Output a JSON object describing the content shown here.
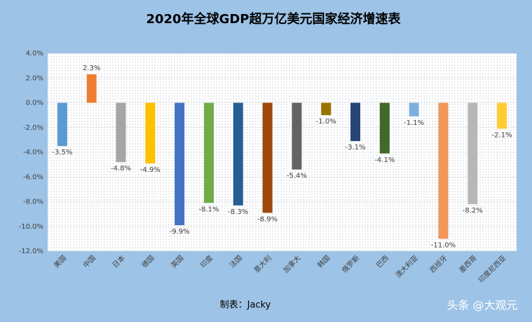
{
  "chart_data": {
    "type": "bar",
    "title": "2020年全球GDP超万亿美元国家经济增速表",
    "categories": [
      "美国",
      "中国",
      "日本",
      "德国",
      "英国",
      "印度",
      "法国",
      "意大利",
      "加拿大",
      "韩国",
      "俄罗斯",
      "巴西",
      "澳大利亚",
      "西班牙",
      "墨西哥",
      "印度尼西亚"
    ],
    "values": [
      -3.5,
      2.3,
      -4.8,
      -4.9,
      -9.9,
      -8.1,
      -8.3,
      -8.9,
      -5.4,
      -1.0,
      -3.1,
      -4.1,
      -1.1,
      -11.0,
      -8.2,
      -2.1
    ],
    "value_labels": [
      "-3.5%",
      "2.3%",
      "-4.8%",
      "-4.9%",
      "-9.9%",
      "-8.1%",
      "-8.3%",
      "-8.9%",
      "-5.4%",
      "-1.0%",
      "-3.1%",
      "-4.1%",
      "-1.1%",
      "-11.0%",
      "-8.2%",
      "-2.1%"
    ],
    "colors": [
      "#5b9bd5",
      "#ed7d31",
      "#a5a5a5",
      "#ffc000",
      "#4472c4",
      "#70ad47",
      "#255e91",
      "#9e480e",
      "#636363",
      "#997300",
      "#264478",
      "#43682b",
      "#7cafdd",
      "#f1975a",
      "#b7b7b7",
      "#ffcd33"
    ],
    "ylim": [
      -12,
      4
    ],
    "yticks": [
      {
        "value": -12,
        "label": "-12.0%"
      },
      {
        "value": -10,
        "label": "-10.0%"
      },
      {
        "value": -8,
        "label": "-8.0%"
      },
      {
        "value": -6,
        "label": "-6.0%"
      },
      {
        "value": -4,
        "label": "-4.0%"
      },
      {
        "value": -2,
        "label": "-2.0%"
      },
      {
        "value": 0,
        "label": "0.0%"
      },
      {
        "value": 2,
        "label": "2.0%"
      },
      {
        "value": 4,
        "label": "4.0%"
      }
    ],
    "grid": true,
    "note": "制表：Jacky",
    "watermark": "头条 @大观元"
  }
}
